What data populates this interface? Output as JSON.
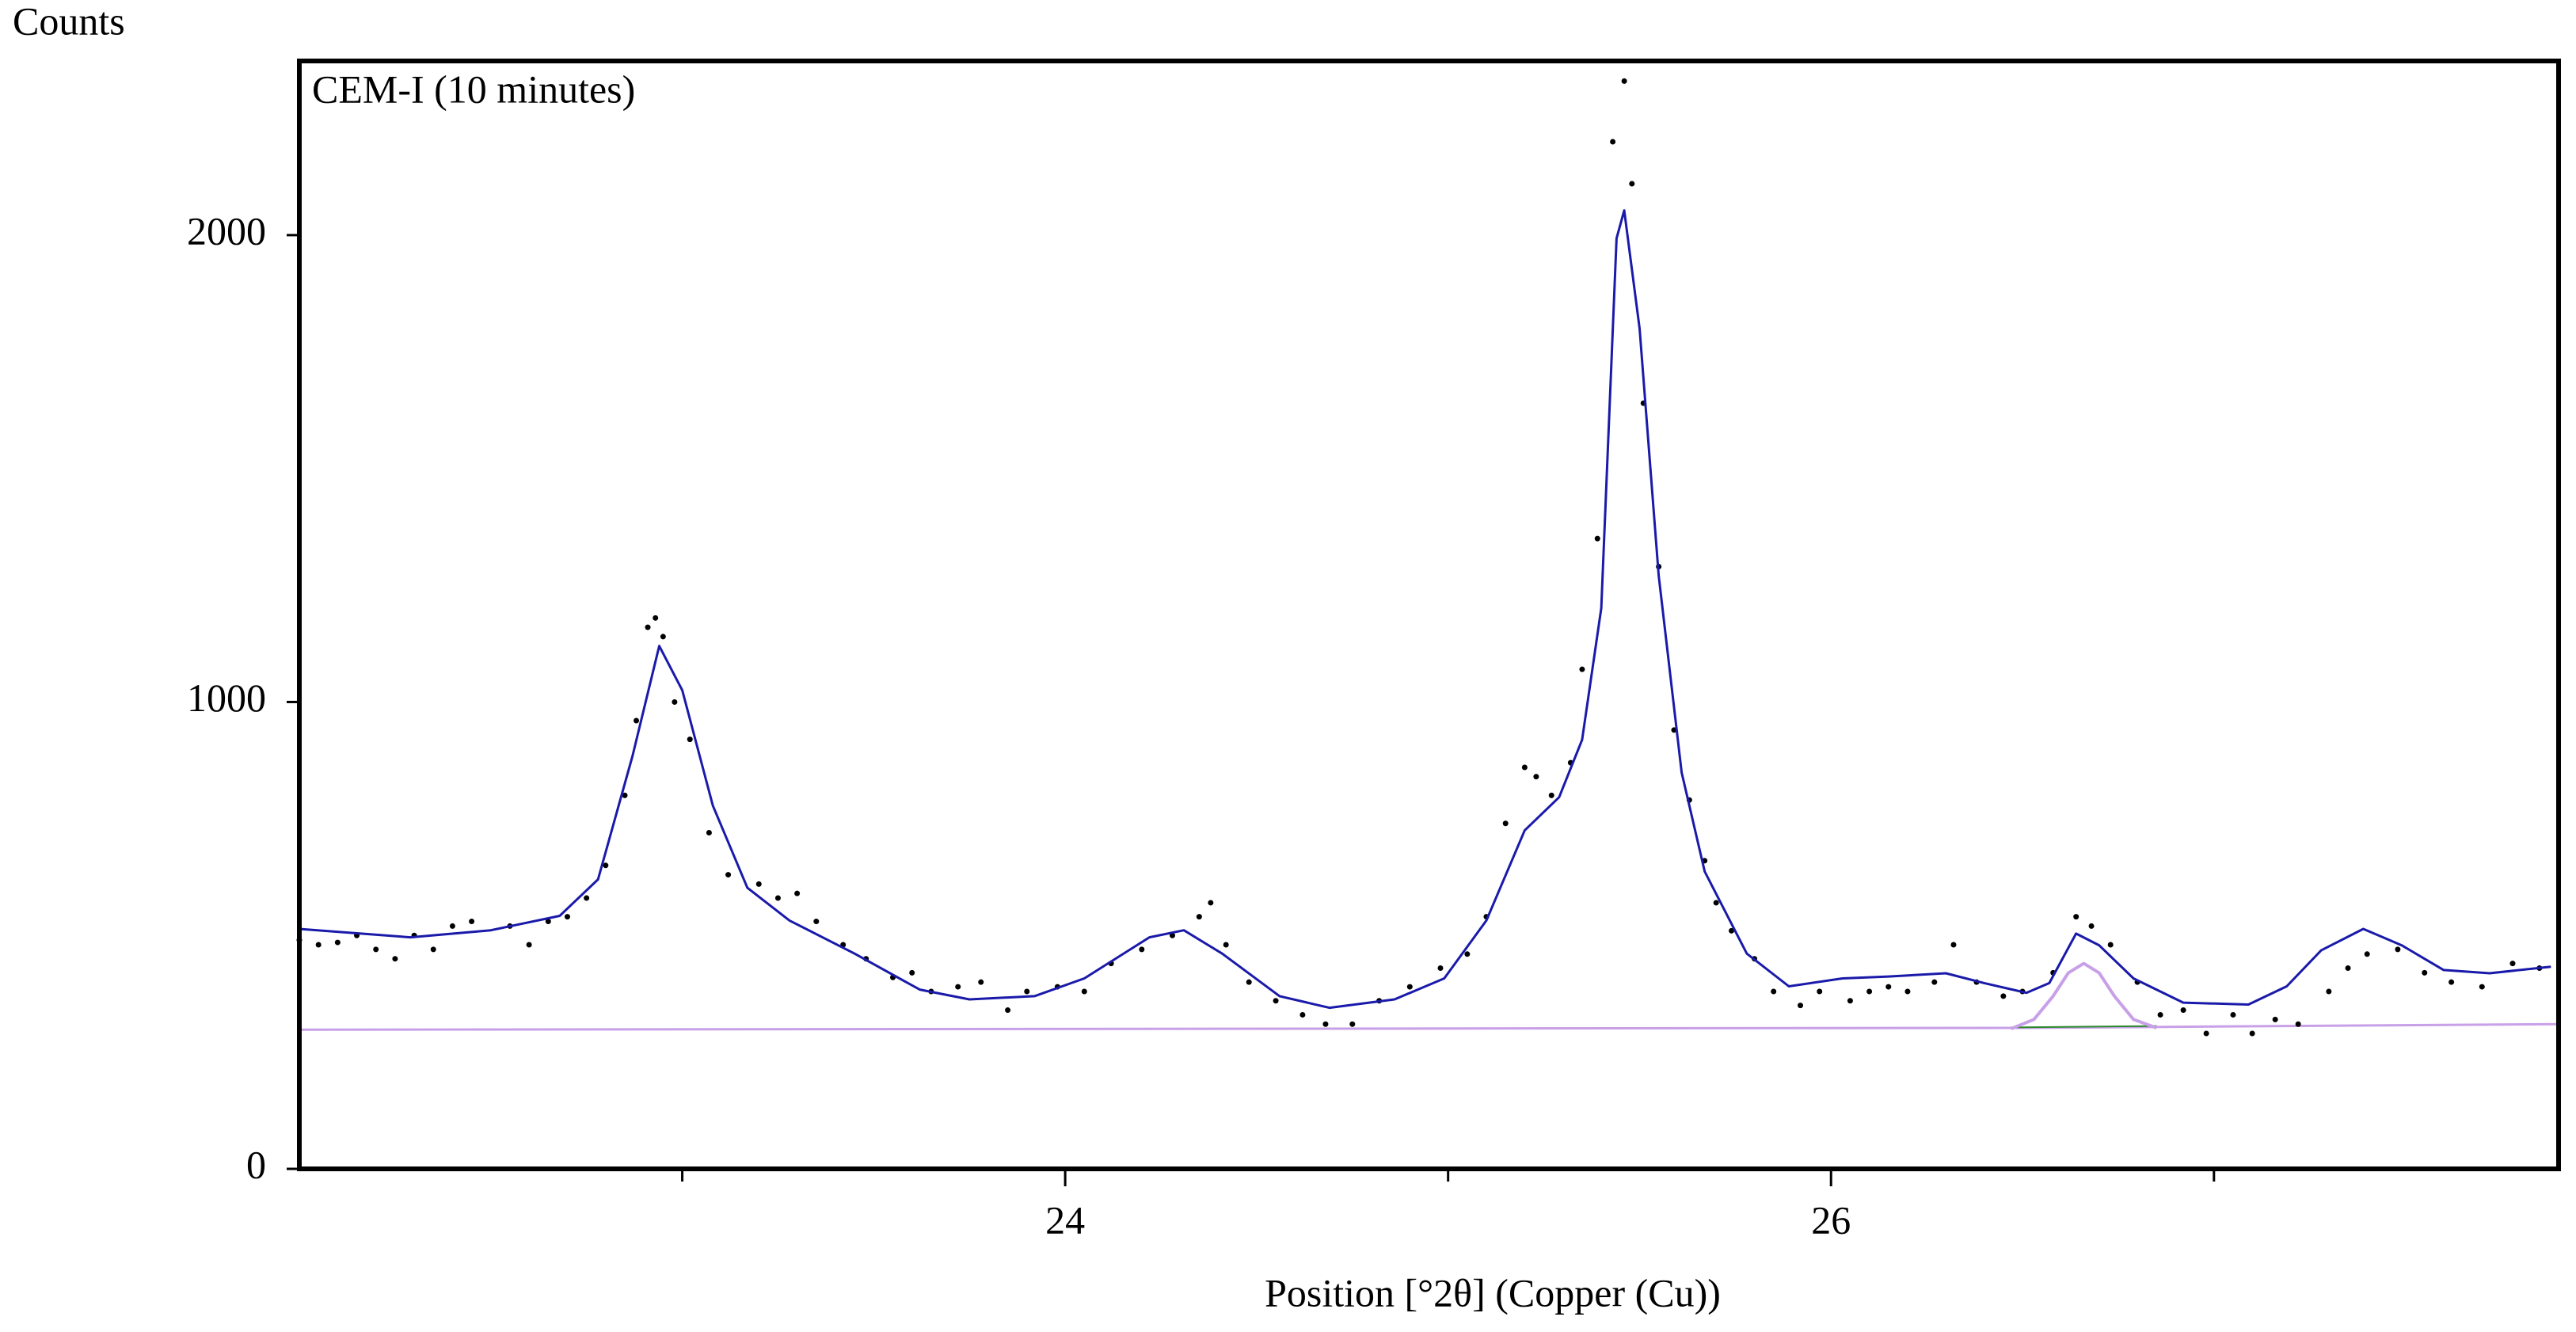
{
  "chart_data": {
    "type": "line",
    "title": "CEM-I (10 minutes)",
    "ylabel": "Counts",
    "xlabel": "Position [°2θ] (Copper (Cu))",
    "xlim": [
      22.0,
      27.9
    ],
    "ylim": [
      0,
      2373
    ],
    "xticks": [
      24,
      26
    ],
    "xminor_ticks": [
      23,
      25,
      27
    ],
    "yticks": [
      0,
      1000,
      2000
    ],
    "grid": false,
    "series": [
      {
        "style": "line",
        "color": "#c8a0e8",
        "width": 3,
        "x": [
          22.0,
          26.5,
          27.9
        ],
        "values": [
          298,
          302,
          310
        ]
      },
      {
        "style": "line",
        "color": "#2a8a2a",
        "width": 2,
        "x": [
          26.47,
          26.85
        ],
        "values": [
          303,
          306
        ]
      },
      {
        "style": "line",
        "color": "#c8a0e8",
        "width": 4,
        "x": [
          26.47,
          26.53,
          26.58,
          26.62,
          26.66,
          26.7,
          26.74,
          26.79,
          26.85
        ],
        "values": [
          300,
          320,
          370,
          420,
          440,
          420,
          370,
          320,
          302
        ]
      },
      {
        "style": "dots",
        "color": "#000000",
        "x": [
          22.0,
          22.05,
          22.1,
          22.15,
          22.2,
          22.25,
          22.3,
          22.35,
          22.4,
          22.45,
          22.55,
          22.6,
          22.65,
          22.7,
          22.75,
          22.8,
          22.85,
          22.88,
          22.91,
          22.93,
          22.95,
          22.98,
          23.02,
          23.07,
          23.12,
          23.2,
          23.25,
          23.3,
          23.35,
          23.42,
          23.48,
          23.55,
          23.6,
          23.65,
          23.72,
          23.78,
          23.85,
          23.9,
          23.98,
          24.05,
          24.12,
          24.2,
          24.28,
          24.35,
          24.38,
          24.42,
          24.48,
          24.55,
          24.62,
          24.68,
          24.75,
          24.82,
          24.9,
          24.98,
          25.05,
          25.1,
          25.15,
          25.2,
          25.23,
          25.27,
          25.32,
          25.35,
          25.39,
          25.43,
          25.46,
          25.48,
          25.51,
          25.55,
          25.59,
          25.63,
          25.67,
          25.7,
          25.74,
          25.8,
          25.85,
          25.92,
          25.97,
          26.05,
          26.1,
          26.15,
          26.2,
          26.27,
          26.32,
          26.38,
          26.45,
          26.5,
          26.58,
          26.64,
          26.68,
          26.73,
          26.8,
          26.86,
          26.92,
          26.98,
          27.05,
          27.1,
          27.16,
          27.22,
          27.3,
          27.35,
          27.4,
          27.48,
          27.55,
          27.62,
          27.7,
          27.78,
          27.85
        ],
        "values": [
          490,
          480,
          485,
          500,
          470,
          450,
          500,
          470,
          520,
          530,
          520,
          480,
          530,
          540,
          580,
          650,
          800,
          960,
          1160,
          1180,
          1140,
          1000,
          920,
          720,
          630,
          610,
          580,
          590,
          530,
          480,
          450,
          410,
          420,
          380,
          390,
          400,
          340,
          380,
          390,
          380,
          440,
          470,
          500,
          540,
          570,
          480,
          400,
          360,
          330,
          310,
          310,
          360,
          390,
          430,
          460,
          540,
          740,
          860,
          840,
          800,
          870,
          1070,
          1350,
          2200,
          2330,
          2110,
          1640,
          1290,
          940,
          790,
          660,
          570,
          510,
          450,
          380,
          350,
          380,
          360,
          380,
          390,
          380,
          400,
          480,
          400,
          370,
          380,
          420,
          540,
          520,
          480,
          400,
          330,
          340,
          290,
          330,
          290,
          320,
          310,
          380,
          430,
          460,
          470,
          420,
          400,
          390,
          440,
          430
        ]
      },
      {
        "style": "line",
        "color": "#1a1aaa",
        "width": 3,
        "x": [
          22.0,
          22.29,
          22.5,
          22.68,
          22.78,
          22.87,
          22.94,
          23.0,
          23.08,
          23.17,
          23.28,
          23.45,
          23.62,
          23.75,
          23.92,
          24.05,
          24.22,
          24.31,
          24.41,
          24.56,
          24.69,
          24.86,
          24.99,
          25.1,
          25.2,
          25.29,
          25.35,
          25.4,
          25.44,
          25.46,
          25.5,
          25.55,
          25.61,
          25.67,
          25.78,
          25.89,
          26.03,
          26.15,
          26.3,
          26.4,
          26.51,
          26.57,
          26.64,
          26.7,
          26.79,
          26.92,
          27.09,
          27.19,
          27.28,
          27.39,
          27.49,
          27.6,
          27.72,
          27.88
        ],
        "values": [
          514,
          496,
          511,
          542,
          620,
          884,
          1120,
          1025,
          778,
          602,
          532,
          461,
          384,
          363,
          370,
          408,
          496,
          511,
          461,
          370,
          345,
          363,
          408,
          532,
          725,
          796,
          919,
          1201,
          1993,
          2053,
          1800,
          1271,
          849,
          637,
          461,
          391,
          408,
          412,
          419,
          398,
          377,
          398,
          504,
          479,
          408,
          356,
          352,
          391,
          468,
          514,
          479,
          426,
          419,
          433
        ]
      }
    ]
  }
}
